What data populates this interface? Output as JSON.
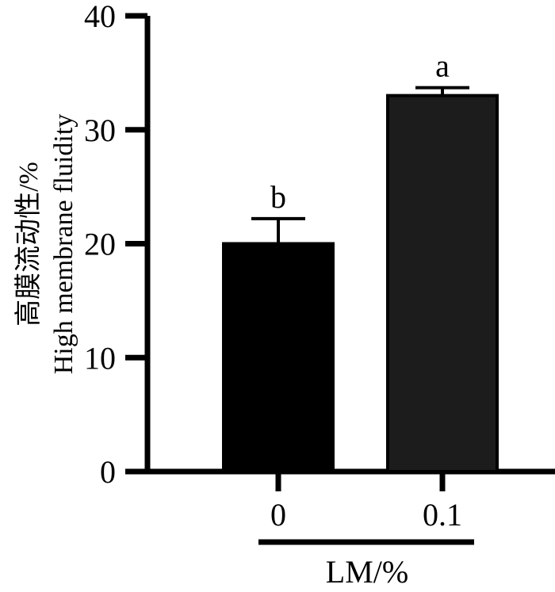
{
  "chart_data": {
    "type": "bar",
    "categories": [
      "0",
      "0.1"
    ],
    "values": [
      20.0,
      33.0
    ],
    "error_upper": [
      22.2,
      33.7
    ],
    "significance_letters": [
      "b",
      "a"
    ],
    "series": [
      {
        "values": [
          20.0,
          33.0
        ]
      }
    ],
    "bar_colors": [
      "#000000",
      "#1c1c1c"
    ],
    "ylabel_line1": "高膜流动性/%",
    "ylabel_line2": "High membrane fluidity",
    "xlabel": "LM/%",
    "ylim": [
      0,
      40
    ],
    "yticks": [
      0,
      10,
      20,
      30,
      40
    ],
    "grid": false
  }
}
